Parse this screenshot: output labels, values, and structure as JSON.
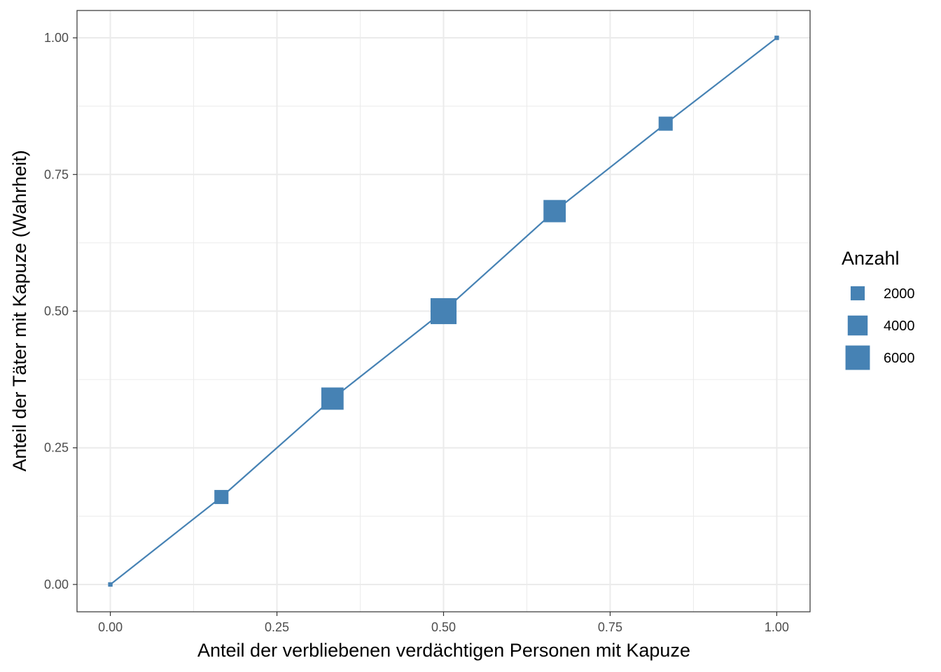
{
  "chart_data": {
    "type": "line",
    "xlabel": "Anteil der verbliebenen verdächtigen Personen mit Kapuze",
    "ylabel": "Anteil der Täter mit Kapuze (Wahrheit)",
    "xlim": [
      -0.05,
      1.05
    ],
    "ylim": [
      -0.05,
      1.05
    ],
    "x_ticks": [
      0.0,
      0.25,
      0.5,
      0.75,
      1.0
    ],
    "x_tick_labels": [
      "0.00",
      "0.25",
      "0.50",
      "0.75",
      "1.00"
    ],
    "y_ticks": [
      0.0,
      0.25,
      0.5,
      0.75,
      1.0
    ],
    "y_tick_labels": [
      "0.00",
      "0.25",
      "0.50",
      "0.75",
      "1.00"
    ],
    "grid": true,
    "marker": "square",
    "color": "#4682b4",
    "points": [
      {
        "x": 0.0,
        "y": 0.0,
        "anzahl": 200
      },
      {
        "x": 0.1667,
        "y": 0.16,
        "anzahl": 2000
      },
      {
        "x": 0.3333,
        "y": 0.34,
        "anzahl": 5000
      },
      {
        "x": 0.5,
        "y": 0.5,
        "anzahl": 6800
      },
      {
        "x": 0.6667,
        "y": 0.683,
        "anzahl": 5000
      },
      {
        "x": 0.8333,
        "y": 0.843,
        "anzahl": 2000
      },
      {
        "x": 1.0,
        "y": 1.0,
        "anzahl": 200
      }
    ],
    "legend": {
      "title": "Anzahl",
      "position": "right",
      "entries": [
        {
          "label": "2000",
          "value": 2000
        },
        {
          "label": "4000",
          "value": 4000
        },
        {
          "label": "6000",
          "value": 6000
        }
      ]
    }
  }
}
